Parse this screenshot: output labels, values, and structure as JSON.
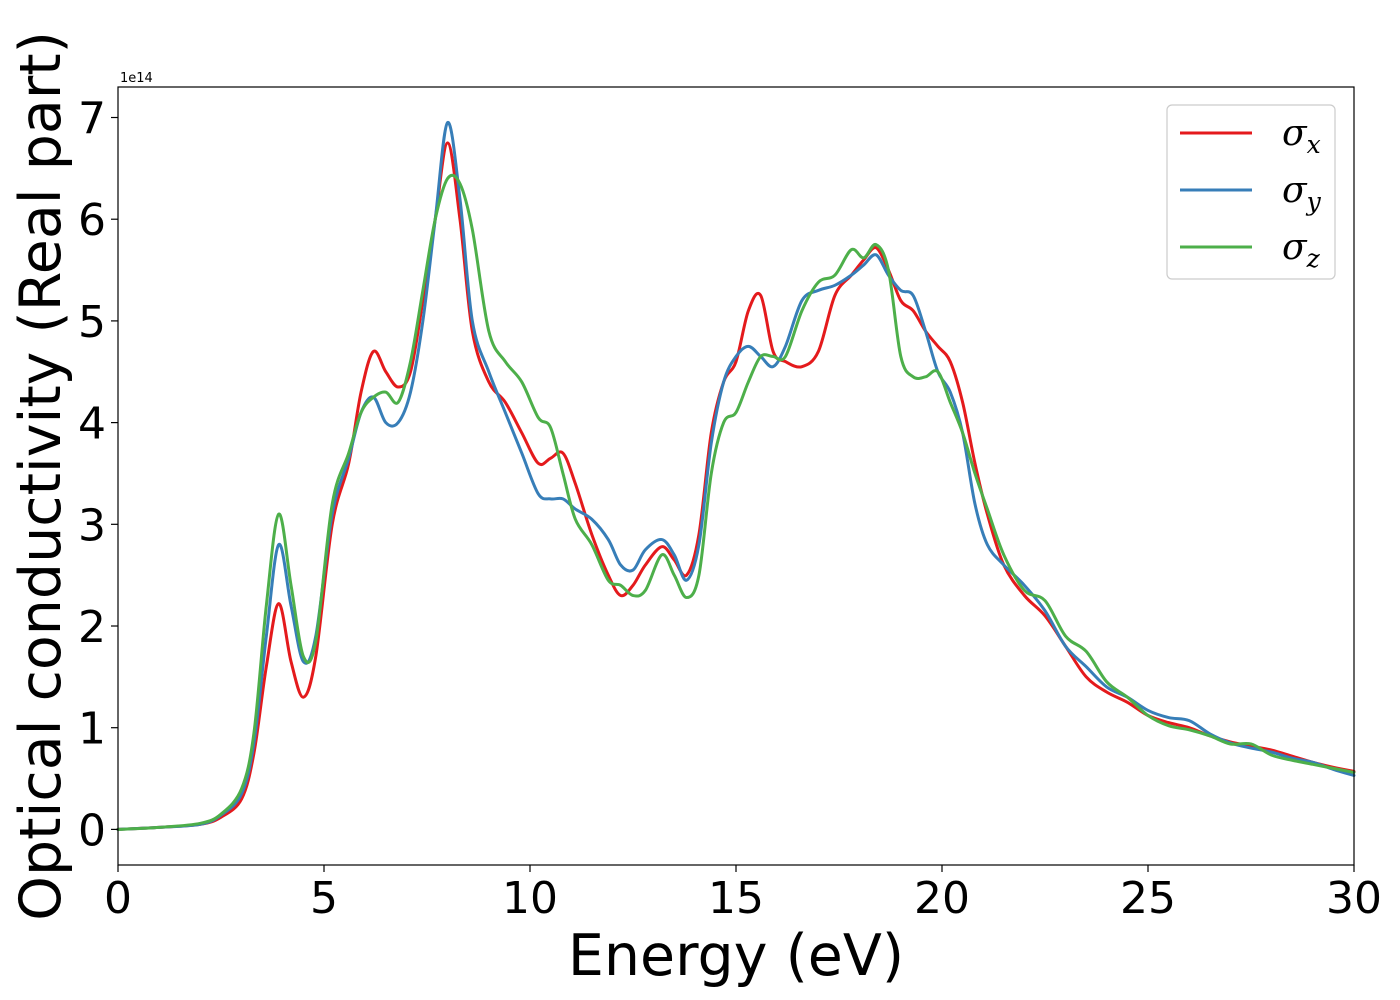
{
  "chart_data": {
    "type": "line",
    "xlabel": "Energy (eV)",
    "ylabel": "Optical conductivity (Real part)",
    "y_offset_label": "1e14",
    "xlim": [
      0,
      30
    ],
    "ylim": [
      -0.35,
      7.3
    ],
    "x_ticks": [
      0,
      5,
      10,
      15,
      20,
      25,
      30
    ],
    "x_tick_labels": [
      "0",
      "5",
      "10",
      "15",
      "20",
      "25",
      "30"
    ],
    "y_ticks": [
      0,
      1,
      2,
      3,
      4,
      5,
      6,
      7
    ],
    "y_tick_labels": [
      "0",
      "1",
      "2",
      "3",
      "4",
      "5",
      "6",
      "7"
    ],
    "grid": false,
    "legend_position": "top-right",
    "series": [
      {
        "name": "σx",
        "symbol": "σ",
        "subscript": "x",
        "color": "#e41a1c",
        "x": [
          0,
          1,
          2,
          2.5,
          3,
          3.3,
          3.6,
          3.9,
          4.2,
          4.5,
          4.8,
          5.2,
          5.6,
          5.9,
          6.2,
          6.5,
          6.8,
          7.1,
          7.4,
          7.7,
          8.0,
          8.3,
          8.6,
          9.0,
          9.4,
          9.8,
          10.2,
          10.5,
          10.8,
          11.1,
          11.5,
          11.9,
          12.2,
          12.5,
          12.8,
          13.2,
          13.5,
          13.8,
          14.1,
          14.4,
          14.7,
          15.0,
          15.3,
          15.6,
          15.9,
          16.2,
          16.6,
          17.0,
          17.4,
          17.8,
          18.1,
          18.4,
          18.7,
          19.0,
          19.3,
          19.6,
          19.9,
          20.2,
          20.5,
          20.8,
          21.1,
          21.5,
          22.0,
          22.5,
          23.0,
          23.5,
          24.0,
          24.5,
          25.0,
          25.5,
          26.0,
          26.5,
          27.0,
          27.5,
          28.0,
          28.5,
          29.0,
          29.5,
          30.0
        ],
        "values": [
          0,
          0.02,
          0.05,
          0.12,
          0.3,
          0.75,
          1.6,
          2.22,
          1.65,
          1.3,
          1.7,
          3.0,
          3.6,
          4.3,
          4.7,
          4.5,
          4.35,
          4.5,
          5.2,
          6.0,
          6.75,
          6.0,
          4.9,
          4.4,
          4.2,
          3.9,
          3.6,
          3.65,
          3.7,
          3.4,
          2.9,
          2.5,
          2.3,
          2.4,
          2.6,
          2.78,
          2.65,
          2.5,
          2.9,
          3.9,
          4.4,
          4.6,
          5.1,
          5.25,
          4.7,
          4.6,
          4.55,
          4.7,
          5.25,
          5.45,
          5.6,
          5.72,
          5.5,
          5.2,
          5.1,
          4.9,
          4.75,
          4.6,
          4.2,
          3.6,
          3.1,
          2.6,
          2.3,
          2.1,
          1.8,
          1.5,
          1.35,
          1.25,
          1.12,
          1.05,
          1.0,
          0.92,
          0.86,
          0.82,
          0.78,
          0.72,
          0.66,
          0.61,
          0.57
        ]
      },
      {
        "name": "σy",
        "symbol": "σ",
        "subscript": "y",
        "color": "#377eb8",
        "x": [
          0,
          1,
          2,
          2.5,
          3,
          3.3,
          3.6,
          3.9,
          4.2,
          4.5,
          4.8,
          5.2,
          5.6,
          5.9,
          6.2,
          6.5,
          6.8,
          7.1,
          7.4,
          7.7,
          8.0,
          8.3,
          8.6,
          9.0,
          9.4,
          9.8,
          10.2,
          10.5,
          10.8,
          11.1,
          11.5,
          11.9,
          12.2,
          12.5,
          12.8,
          13.2,
          13.5,
          13.8,
          14.1,
          14.4,
          14.7,
          15.0,
          15.3,
          15.6,
          15.9,
          16.2,
          16.6,
          17.0,
          17.4,
          17.8,
          18.1,
          18.4,
          18.7,
          19.0,
          19.3,
          19.6,
          19.9,
          20.2,
          20.5,
          20.8,
          21.1,
          21.5,
          22.0,
          22.5,
          23.0,
          23.5,
          24.0,
          24.5,
          25.0,
          25.5,
          26.0,
          26.5,
          27.0,
          27.5,
          28.0,
          28.5,
          29.0,
          29.5,
          30.0
        ],
        "values": [
          0,
          0.02,
          0.05,
          0.14,
          0.35,
          0.85,
          1.9,
          2.8,
          2.2,
          1.65,
          1.9,
          3.1,
          3.65,
          4.1,
          4.25,
          4.0,
          4.0,
          4.3,
          5.0,
          6.0,
          6.95,
          6.2,
          5.0,
          4.5,
          4.1,
          3.7,
          3.3,
          3.25,
          3.25,
          3.15,
          3.05,
          2.85,
          2.6,
          2.55,
          2.75,
          2.85,
          2.7,
          2.45,
          2.8,
          3.8,
          4.4,
          4.65,
          4.75,
          4.65,
          4.55,
          4.75,
          5.2,
          5.3,
          5.35,
          5.45,
          5.55,
          5.65,
          5.45,
          5.3,
          5.25,
          4.9,
          4.5,
          4.3,
          3.9,
          3.2,
          2.8,
          2.6,
          2.4,
          2.15,
          1.8,
          1.6,
          1.4,
          1.3,
          1.17,
          1.1,
          1.07,
          0.94,
          0.85,
          0.8,
          0.76,
          0.7,
          0.66,
          0.59,
          0.53
        ]
      },
      {
        "name": "σz",
        "symbol": "σ",
        "subscript": "z",
        "color": "#4daf4a",
        "x": [
          0,
          1,
          2,
          2.5,
          3,
          3.3,
          3.6,
          3.9,
          4.2,
          4.5,
          4.8,
          5.2,
          5.6,
          5.9,
          6.2,
          6.5,
          6.8,
          7.1,
          7.4,
          7.7,
          8.0,
          8.3,
          8.6,
          9.0,
          9.4,
          9.8,
          10.2,
          10.5,
          10.8,
          11.1,
          11.5,
          11.9,
          12.2,
          12.5,
          12.8,
          13.2,
          13.5,
          13.8,
          14.1,
          14.4,
          14.7,
          15.0,
          15.3,
          15.6,
          15.9,
          16.2,
          16.6,
          17.0,
          17.4,
          17.8,
          18.1,
          18.4,
          18.7,
          19.0,
          19.3,
          19.6,
          19.9,
          20.2,
          20.5,
          20.8,
          21.1,
          21.5,
          22.0,
          22.5,
          23.0,
          23.5,
          24.0,
          24.5,
          25.0,
          25.5,
          26.0,
          26.5,
          27.0,
          27.5,
          28.0,
          28.5,
          29.0,
          29.5,
          30.0
        ],
        "values": [
          0,
          0.02,
          0.06,
          0.15,
          0.4,
          0.95,
          2.2,
          3.1,
          2.4,
          1.7,
          1.85,
          3.2,
          3.7,
          4.1,
          4.25,
          4.3,
          4.2,
          4.6,
          5.3,
          6.0,
          6.4,
          6.35,
          5.9,
          4.9,
          4.6,
          4.4,
          4.05,
          3.95,
          3.5,
          3.05,
          2.8,
          2.45,
          2.4,
          2.3,
          2.35,
          2.7,
          2.5,
          2.28,
          2.5,
          3.5,
          4.0,
          4.1,
          4.4,
          4.65,
          4.65,
          4.65,
          5.1,
          5.38,
          5.45,
          5.7,
          5.62,
          5.75,
          5.5,
          4.65,
          4.45,
          4.45,
          4.5,
          4.2,
          3.9,
          3.5,
          3.15,
          2.7,
          2.35,
          2.25,
          1.9,
          1.75,
          1.45,
          1.3,
          1.12,
          1.02,
          0.98,
          0.92,
          0.84,
          0.84,
          0.73,
          0.68,
          0.64,
          0.6,
          0.56
        ]
      }
    ]
  }
}
